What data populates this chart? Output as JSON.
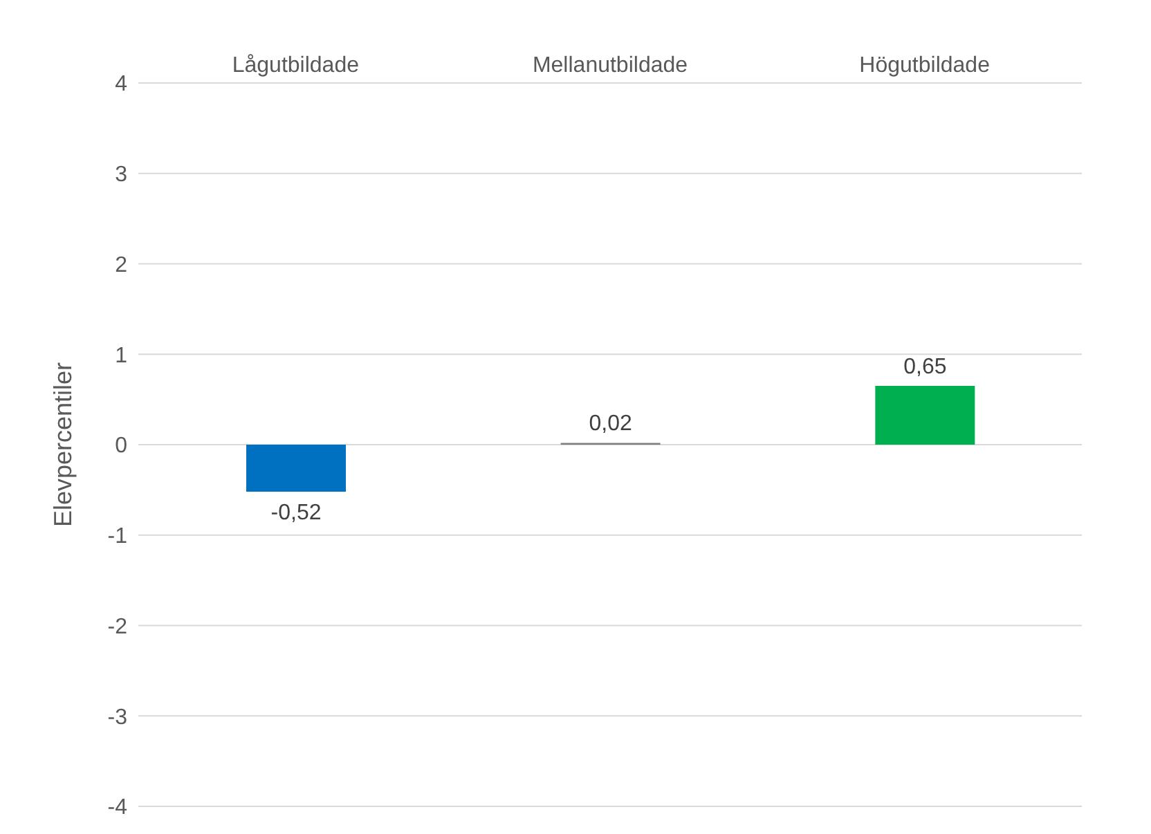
{
  "chart_data": {
    "type": "bar",
    "categories": [
      "Lågutbildade",
      "Mellanutbildade",
      "Högutbildade"
    ],
    "values": [
      -0.52,
      0.02,
      0.65
    ],
    "colors": [
      "#0070c0",
      "#7f7f7f",
      "#00b050"
    ],
    "value_labels": [
      "-0,52",
      "0,02",
      "0,65"
    ],
    "ylabel": "Elevpercentiler",
    "ylim": [
      -4,
      4
    ],
    "yticks": [
      -4,
      -3,
      -2,
      -1,
      0,
      1,
      2,
      3,
      4
    ],
    "grid": "y"
  }
}
